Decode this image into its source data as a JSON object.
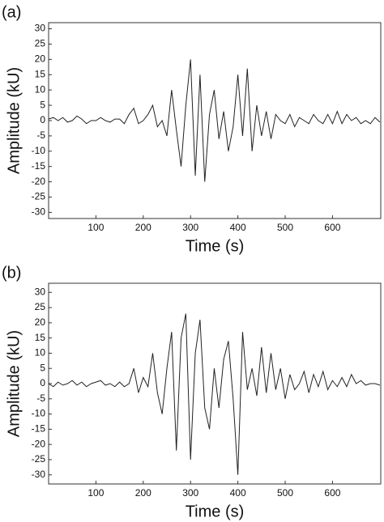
{
  "chart_data": [
    {
      "type": "line",
      "panel_label": "(a)",
      "xlabel": "Time (s)",
      "ylabel": "Amplitude (kU)",
      "x": [
        0,
        10,
        20,
        30,
        40,
        50,
        60,
        70,
        80,
        90,
        100,
        110,
        120,
        130,
        140,
        150,
        160,
        170,
        180,
        190,
        200,
        210,
        220,
        230,
        240,
        250,
        260,
        270,
        280,
        290,
        300,
        310,
        320,
        330,
        340,
        350,
        360,
        370,
        380,
        390,
        400,
        410,
        420,
        430,
        440,
        450,
        460,
        470,
        480,
        490,
        500,
        510,
        520,
        530,
        540,
        550,
        560,
        570,
        580,
        590,
        600,
        610,
        620,
        630,
        640,
        650,
        660,
        670,
        680,
        690,
        700
      ],
      "series": [
        {
          "color": "#222222",
          "values": [
            0.5,
            1,
            0,
            1,
            -0.5,
            0,
            1.5,
            0.5,
            -1,
            0,
            0,
            1,
            0,
            -0.5,
            0.5,
            0.5,
            -1,
            2,
            4,
            -1,
            0,
            2,
            5,
            -2,
            0,
            -5,
            10,
            -3,
            -15,
            5,
            20,
            -18,
            15,
            -20,
            2,
            10,
            -6,
            3,
            -10,
            -2,
            15,
            -5,
            17,
            -10,
            5,
            -5,
            3,
            -6,
            2,
            0,
            -1,
            2,
            -2,
            1,
            0,
            -1,
            2,
            0,
            -1,
            2,
            -1,
            3,
            -1,
            2,
            0,
            1,
            -1,
            0,
            -1,
            1,
            -0.5
          ]
        }
      ],
      "xlim": [
        0,
        702
      ],
      "ylim": [
        -32,
        32
      ],
      "xticks": [
        100,
        200,
        300,
        400,
        500,
        600
      ],
      "yticks": [
        -30,
        -25,
        -20,
        -15,
        -10,
        -5,
        0,
        5,
        10,
        15,
        20,
        25,
        30
      ]
    },
    {
      "type": "line",
      "panel_label": "(b)",
      "xlabel": "Time (s)",
      "ylabel": "Amplitude (kU)",
      "x": [
        0,
        10,
        20,
        30,
        40,
        50,
        60,
        70,
        80,
        90,
        100,
        110,
        120,
        130,
        140,
        150,
        160,
        170,
        180,
        190,
        200,
        210,
        220,
        230,
        240,
        250,
        260,
        270,
        280,
        290,
        300,
        310,
        320,
        330,
        340,
        350,
        360,
        370,
        380,
        390,
        400,
        410,
        420,
        430,
        440,
        450,
        460,
        470,
        480,
        490,
        500,
        510,
        520,
        530,
        540,
        550,
        560,
        570,
        580,
        590,
        600,
        610,
        620,
        630,
        640,
        650,
        660,
        670,
        680,
        690,
        700
      ],
      "series": [
        {
          "color": "#222222",
          "values": [
            0,
            -1,
            0.5,
            -0.5,
            0,
            1,
            -0.5,
            0.5,
            -1,
            0,
            0.5,
            1,
            -0.5,
            0,
            -1,
            0.5,
            -1,
            0,
            5,
            -3,
            2,
            -1,
            10,
            -3,
            -10,
            5,
            17,
            -22,
            15,
            23,
            -25,
            10,
            21,
            -8,
            -15,
            5,
            -8,
            8,
            14,
            -5,
            -30,
            17,
            -2,
            5,
            -4,
            12,
            -3,
            10,
            -2,
            5,
            -5,
            3,
            -2,
            0,
            4,
            -3,
            3,
            -1,
            4,
            -2,
            1,
            -1,
            2,
            -1,
            3,
            0,
            1,
            -0.5,
            0,
            0,
            -0.5
          ]
        }
      ],
      "xlim": [
        0,
        702
      ],
      "ylim": [
        -33,
        33
      ],
      "xticks": [
        100,
        200,
        300,
        400,
        500,
        600
      ],
      "yticks": [
        -30,
        -25,
        -20,
        -15,
        -10,
        -5,
        0,
        5,
        10,
        15,
        20,
        25,
        30
      ]
    }
  ]
}
